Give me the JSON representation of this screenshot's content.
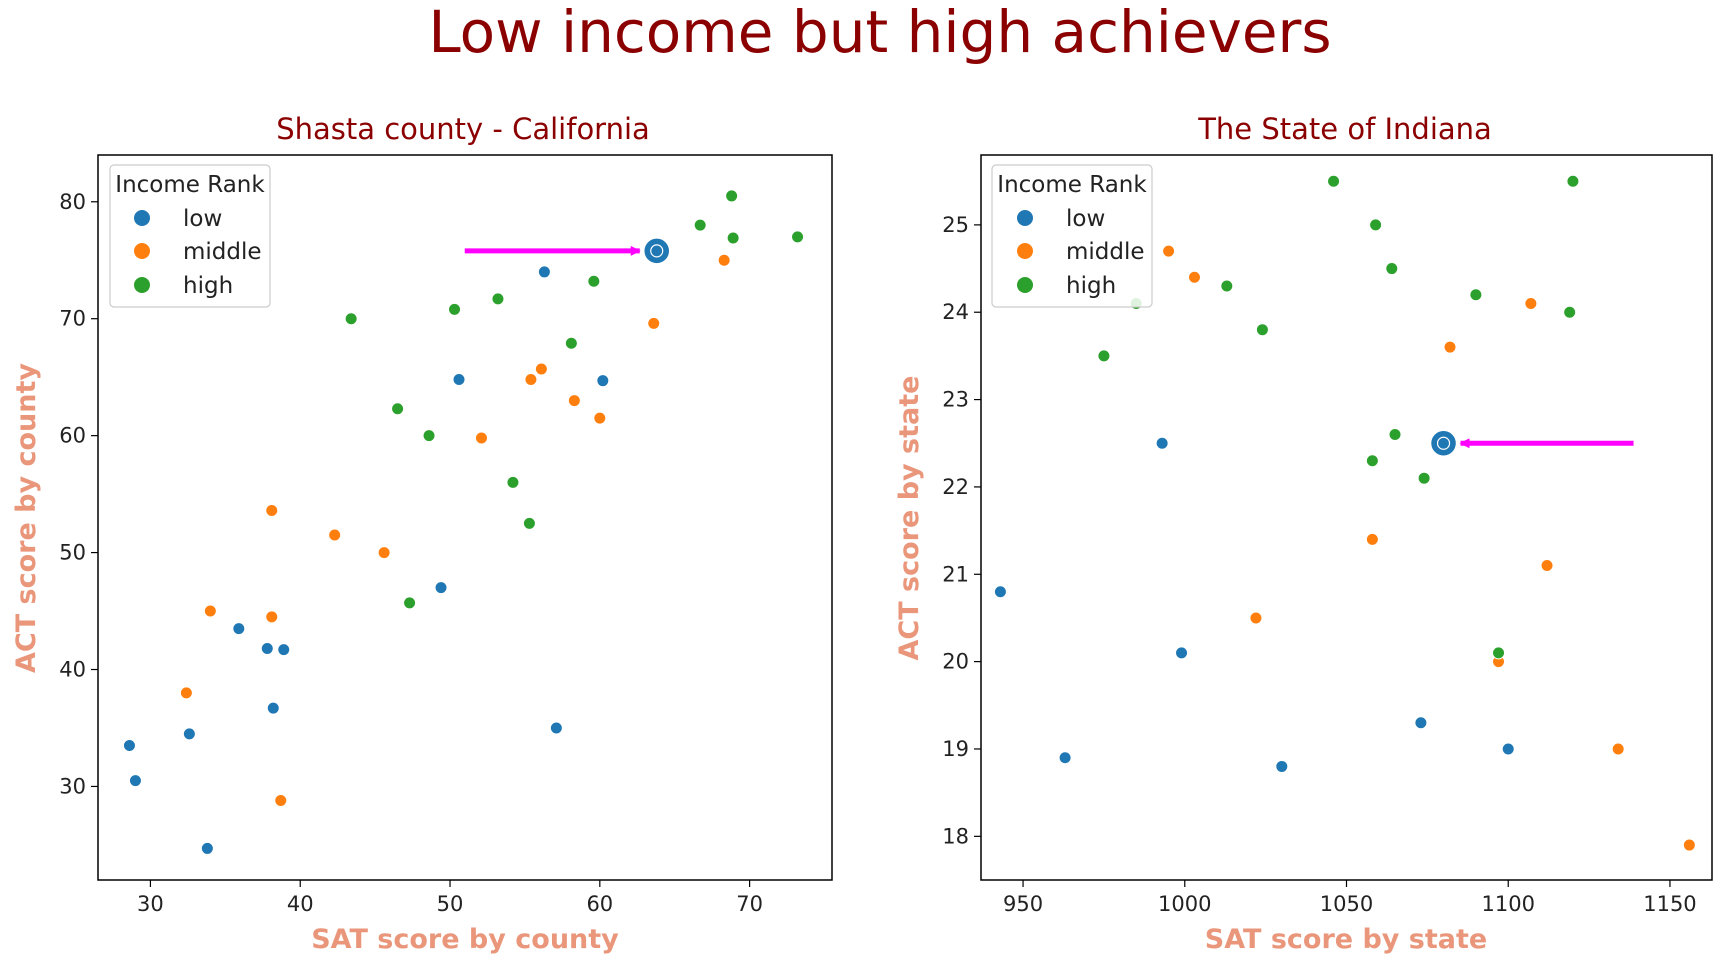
{
  "title": "Low income but high achievers",
  "colors": {
    "low": "#1f77b4",
    "middle": "#ff7f0e",
    "high": "#2ca02c",
    "arrow": "#ff00ff",
    "suptitle": "#8b0000",
    "axis_label": "#e9967a"
  },
  "chart_data": [
    {
      "type": "scatter",
      "title": "Shasta county - California",
      "xlabel": "SAT score by county",
      "ylabel": "ACT score by county",
      "xlim": [
        26.5,
        75.5
      ],
      "ylim": [
        22,
        84
      ],
      "xticks": [
        30,
        40,
        50,
        60,
        70
      ],
      "yticks": [
        30,
        40,
        50,
        60,
        70,
        80
      ],
      "grid": false,
      "legend": {
        "title": "Income Rank",
        "placement": "top-left",
        "entries": [
          "low",
          "middle",
          "high"
        ]
      },
      "series": [
        {
          "name": "low",
          "points": [
            [
              28.6,
              33.5
            ],
            [
              29.0,
              30.5
            ],
            [
              32.6,
              34.5
            ],
            [
              33.8,
              24.7
            ],
            [
              35.9,
              43.5
            ],
            [
              37.8,
              41.8
            ],
            [
              38.2,
              36.7
            ],
            [
              38.9,
              41.7
            ],
            [
              49.4,
              47.0
            ],
            [
              50.6,
              64.8
            ],
            [
              56.3,
              74.0
            ],
            [
              57.1,
              35.0
            ],
            [
              60.2,
              64.7
            ]
          ]
        },
        {
          "name": "middle",
          "points": [
            [
              32.4,
              38.0
            ],
            [
              34.0,
              45.0
            ],
            [
              38.1,
              53.6
            ],
            [
              38.1,
              44.5
            ],
            [
              38.7,
              28.8
            ],
            [
              42.3,
              51.5
            ],
            [
              45.6,
              50.0
            ],
            [
              52.1,
              59.8
            ],
            [
              55.4,
              64.8
            ],
            [
              56.1,
              65.7
            ],
            [
              58.3,
              63.0
            ],
            [
              60.0,
              61.5
            ],
            [
              63.6,
              69.6
            ],
            [
              68.3,
              75.0
            ]
          ]
        },
        {
          "name": "high",
          "points": [
            [
              43.4,
              70.0
            ],
            [
              46.5,
              62.3
            ],
            [
              47.3,
              45.7
            ],
            [
              48.6,
              60.0
            ],
            [
              50.3,
              70.8
            ],
            [
              53.2,
              71.7
            ],
            [
              54.2,
              56.0
            ],
            [
              55.3,
              52.5
            ],
            [
              58.1,
              67.9
            ],
            [
              59.6,
              73.2
            ],
            [
              66.7,
              78.0
            ],
            [
              68.8,
              80.5
            ],
            [
              68.9,
              76.9
            ],
            [
              73.2,
              77.0
            ]
          ]
        }
      ],
      "highlight": {
        "x": 63.8,
        "y": 75.8,
        "series": "low",
        "arrow_from": "left"
      }
    },
    {
      "type": "scatter",
      "title": "The State of Indiana",
      "xlabel": "SAT score by state",
      "ylabel": "ACT score by state",
      "xlim": [
        937,
        1163
      ],
      "ylim": [
        17.5,
        25.8
      ],
      "xticks": [
        950,
        1000,
        1050,
        1100,
        1150
      ],
      "yticks": [
        18,
        19,
        20,
        21,
        22,
        23,
        24,
        25
      ],
      "grid": false,
      "legend": {
        "title": "Income Rank",
        "placement": "top-left",
        "entries": [
          "low",
          "middle",
          "high"
        ]
      },
      "series": [
        {
          "name": "low",
          "points": [
            [
              943,
              20.8
            ],
            [
              963,
              18.9
            ],
            [
              993,
              22.5
            ],
            [
              999,
              20.1
            ],
            [
              1030,
              18.8
            ],
            [
              1073,
              19.3
            ],
            [
              1100,
              19.0
            ]
          ]
        },
        {
          "name": "middle",
          "points": [
            [
              995,
              24.7
            ],
            [
              1003,
              24.4
            ],
            [
              1022,
              20.5
            ],
            [
              1058,
              21.4
            ],
            [
              1082,
              23.6
            ],
            [
              1097,
              20.0
            ],
            [
              1107,
              24.1
            ],
            [
              1112,
              21.1
            ],
            [
              1134,
              19.0
            ],
            [
              1156,
              17.9
            ]
          ]
        },
        {
          "name": "high",
          "points": [
            [
              975,
              23.5
            ],
            [
              985,
              24.1
            ],
            [
              1013,
              24.3
            ],
            [
              1024,
              23.8
            ],
            [
              1046,
              25.5
            ],
            [
              1058,
              22.3
            ],
            [
              1059,
              25.0
            ],
            [
              1064,
              24.5
            ],
            [
              1065,
              22.6
            ],
            [
              1074,
              22.1
            ],
            [
              1090,
              24.2
            ],
            [
              1097,
              20.1
            ],
            [
              1119,
              24.0
            ],
            [
              1120,
              25.5
            ]
          ]
        }
      ],
      "highlight": {
        "x": 1080,
        "y": 22.5,
        "series": "low",
        "arrow_from": "right"
      }
    }
  ]
}
